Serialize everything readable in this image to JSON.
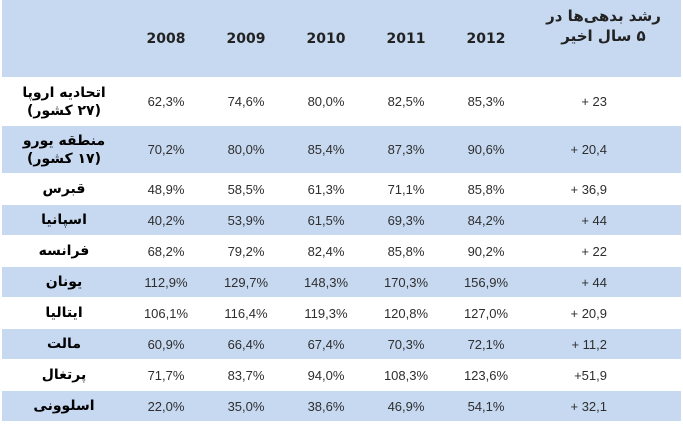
{
  "table": {
    "columns": [
      "2008",
      "2009",
      "2010",
      "2011",
      "2012"
    ],
    "growth_header_line1": "رشد بدهی‌ها در",
    "growth_header_line2": "۵ سال اخیر",
    "rows": [
      {
        "country_line1": "اتحادیه اروپا",
        "country_line2": "(۲۷ کشور)",
        "values": [
          "62,3%",
          "74,6%",
          "80,0%",
          "82,5%",
          "85,3%"
        ],
        "growth": "+ 23"
      },
      {
        "country_line1": "منطقه یورو",
        "country_line2": "(۱۷ کشور)",
        "values": [
          "70,2%",
          "80,0%",
          "85,4%",
          "87,3%",
          "90,6%"
        ],
        "growth": "+ 20,4"
      },
      {
        "country_line1": "قبرس",
        "values": [
          "48,9%",
          "58,5%",
          "61,3%",
          "71,1%",
          "85,8%"
        ],
        "growth": "+ 36,9"
      },
      {
        "country_line1": "اسپانیا",
        "values": [
          "40,2%",
          "53,9%",
          "61,5%",
          "69,3%",
          "84,2%"
        ],
        "growth": "+ 44"
      },
      {
        "country_line1": "فرانسه",
        "values": [
          "68,2%",
          "79,2%",
          "82,4%",
          "85,8%",
          "90,2%"
        ],
        "growth": "+ 22"
      },
      {
        "country_line1": "یونان",
        "values": [
          "112,9%",
          "129,7%",
          "148,3%",
          "170,3%",
          "156,9%"
        ],
        "growth": "+ 44"
      },
      {
        "country_line1": "ایتالیا",
        "values": [
          "106,1%",
          "116,4%",
          "119,3%",
          "120,8%",
          "127,0%"
        ],
        "growth": "+ 20,9"
      },
      {
        "country_line1": "مالت",
        "values": [
          "60,9%",
          "66,4%",
          "67,4%",
          "70,3%",
          "72,1%"
        ],
        "growth": "+ 11,2"
      },
      {
        "country_line1": "پرتغال",
        "values": [
          "71,7%",
          "83,7%",
          "94,0%",
          "108,3%",
          "123,6%"
        ],
        "growth": "+51,9"
      },
      {
        "country_line1": "اسلوونی",
        "values": [
          "22,0%",
          "35,0%",
          "38,6%",
          "46,9%",
          "54,1%"
        ],
        "growth": "+ 32,1"
      }
    ]
  }
}
